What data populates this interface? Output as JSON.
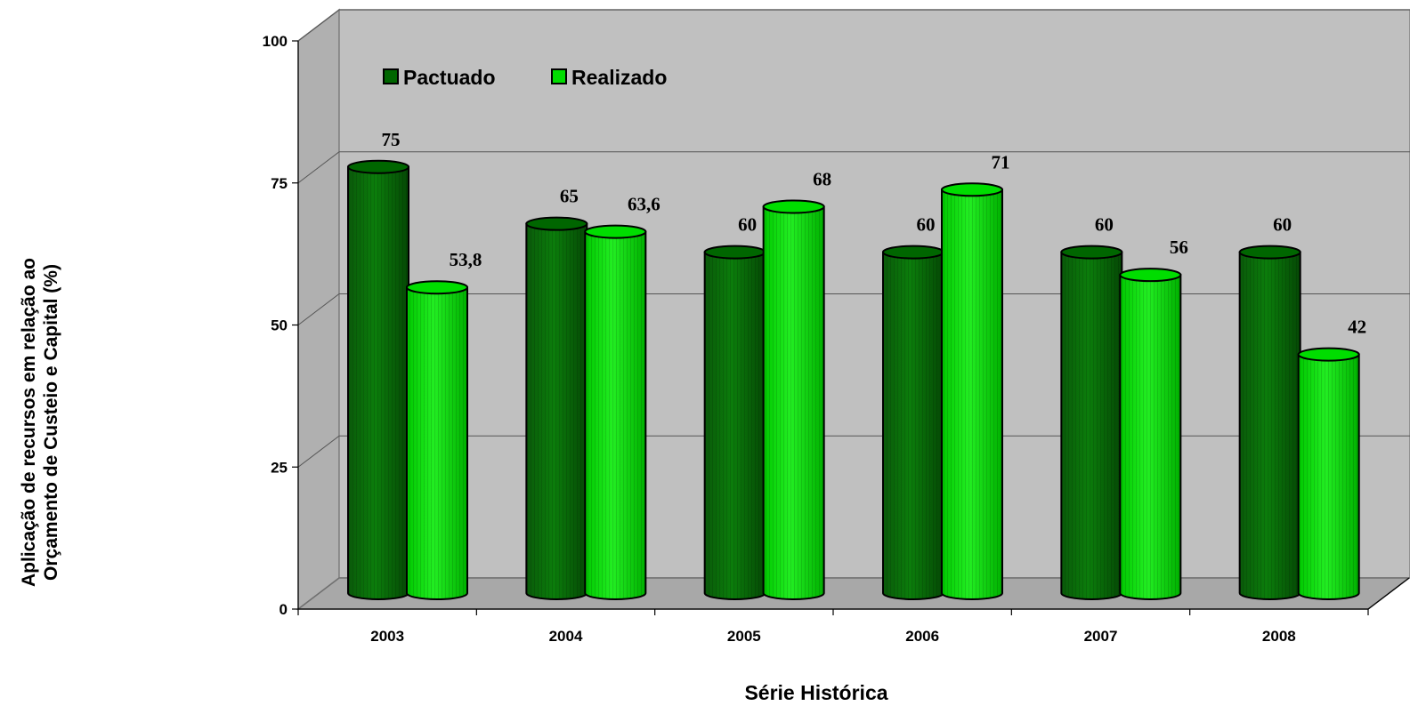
{
  "chart_data": {
    "type": "bar",
    "categories": [
      "2003",
      "2004",
      "2005",
      "2006",
      "2007",
      "2008"
    ],
    "series": [
      {
        "name": "Pactuado",
        "values": [
          75,
          65,
          60,
          60,
          60,
          60
        ],
        "labels": [
          "75",
          "65",
          "60",
          "60",
          "60",
          "60"
        ]
      },
      {
        "name": "Realizado",
        "values": [
          53.8,
          63.6,
          68,
          71,
          56,
          42
        ],
        "labels": [
          "53,8",
          "63,6",
          "68",
          "71",
          "56",
          "42"
        ]
      }
    ],
    "title": "",
    "xlabel": "Série Histórica",
    "ylabel_line1": "Aplicação de recursos em relação ao",
    "ylabel_line2": "Orçamento de Custeio e Capital (%)",
    "ylim": [
      0,
      100
    ],
    "yticks": [
      "0",
      "25",
      "50",
      "75",
      "100"
    ],
    "grid": true,
    "legend": "top-left",
    "style": "3d-cylinder",
    "colors": {
      "Pactuado": "#006600",
      "Realizado": "#00dd00",
      "wall": "#c0c0c0",
      "floor": "#a8a8a8"
    }
  }
}
